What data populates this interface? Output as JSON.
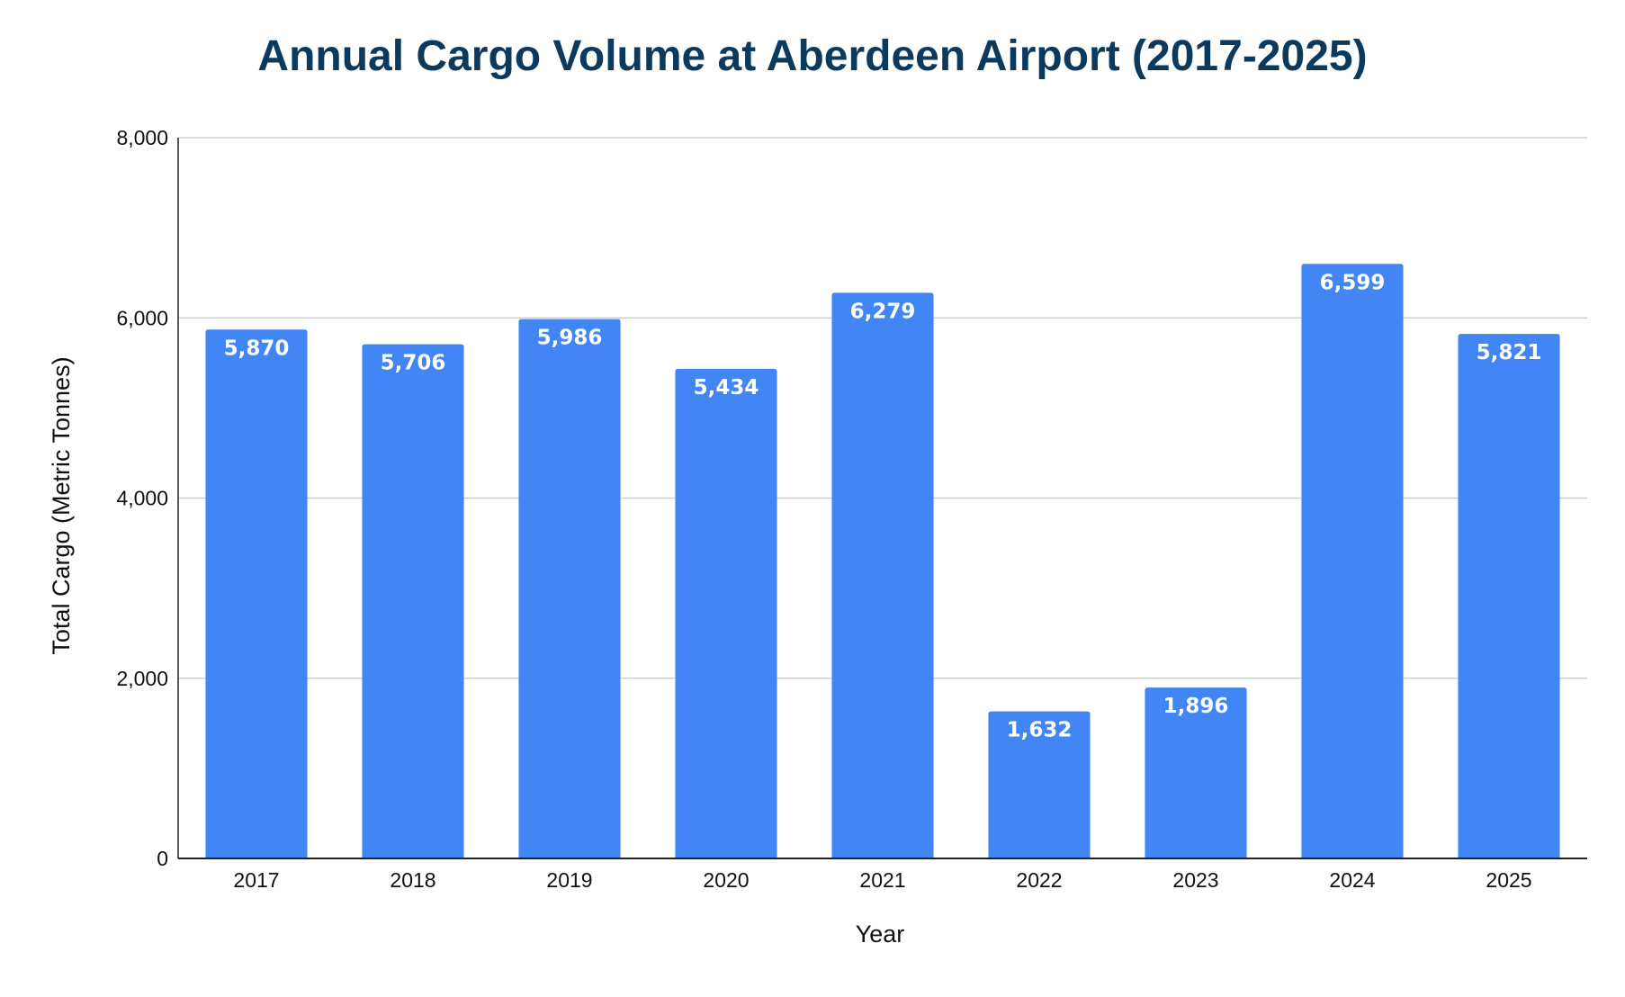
{
  "chart_data": {
    "type": "bar",
    "title": "Annual Cargo Volume at Aberdeen Airport (2017-2025)",
    "xlabel": "Year",
    "ylabel": "Total Cargo (Metric Tonnes)",
    "categories": [
      "2017",
      "2018",
      "2019",
      "2020",
      "2021",
      "2022",
      "2023",
      "2024",
      "2025"
    ],
    "values": [
      5870,
      5706,
      5986,
      5434,
      6279,
      1632,
      1896,
      6599,
      5821
    ],
    "data_labels": [
      "5,870",
      "5,706",
      "5,986",
      "5,434",
      "6,279",
      "1,632",
      "1,896",
      "6,599",
      "5,821"
    ],
    "ylim": [
      0,
      8000
    ],
    "yticks": [
      0,
      2000,
      4000,
      6000,
      8000
    ],
    "ytick_labels": [
      "0",
      "2,000",
      "4,000",
      "6,000",
      "8,000"
    ],
    "grid": true,
    "legend": "none",
    "colors": {
      "bar": "#4285f4",
      "title": "#0b3a5e",
      "grid": "#c8c8c8",
      "axis": "#222222",
      "data_label": "#ffffff"
    }
  }
}
